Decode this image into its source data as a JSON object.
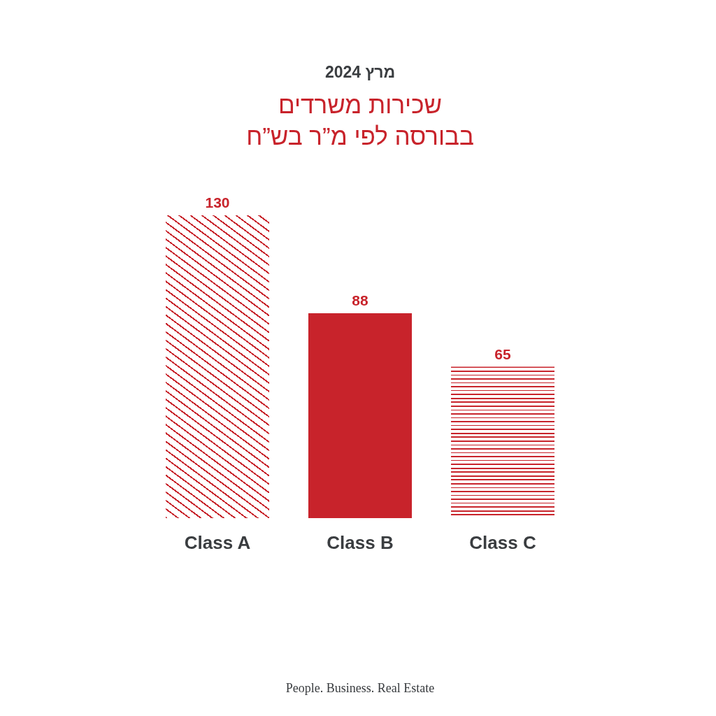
{
  "chart_data": {
    "type": "bar",
    "title": "מרץ 2024",
    "subtitle": "שכירות משרדים\nבבורסה לפי מ”ר בש”ח",
    "categories": [
      "Class A",
      "Class B",
      "Class C"
    ],
    "values": [
      130,
      88,
      65
    ],
    "colors": [
      "#c8232b",
      "#c8232b",
      "#c8232b"
    ],
    "data_labels": true,
    "annotations": [
      "People. Business. Real Estate"
    ]
  }
}
